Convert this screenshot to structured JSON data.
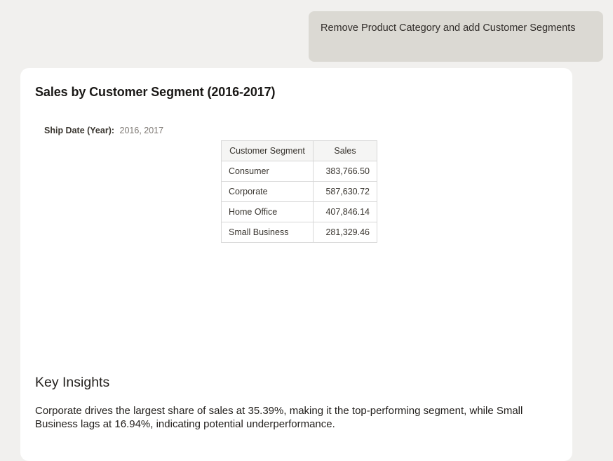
{
  "colors": {
    "page_bg": "#f1f0ee",
    "banner_bg": "#dbd9d3",
    "card_bg": "#ffffff",
    "text_dark": "#312d2a",
    "text_muted": "#7d7873",
    "table_border": "#d8d8d8",
    "table_header_bg": "#f5f5f4"
  },
  "banner": {
    "text": "Remove Product Category and add Customer Segments"
  },
  "card": {
    "title": "Sales by Customer Segment (2016-2017)",
    "filter": {
      "label": "Ship Date (Year):",
      "value": "2016, 2017"
    },
    "insights": {
      "heading": "Key Insights",
      "body": "Corporate drives the largest share of sales at 35.39%, making it the top-performing segment, while Small Business lags at 16.94%, indicating potential underperformance."
    }
  },
  "chart_data": {
    "type": "table",
    "title": "Sales by Customer Segment (2016-2017)",
    "columns": [
      "Customer Segment",
      "Sales"
    ],
    "rows": [
      [
        "Consumer",
        "383,766.50"
      ],
      [
        "Corporate",
        "587,630.72"
      ],
      [
        "Home Office",
        "407,846.14"
      ],
      [
        "Small Business",
        "281,329.46"
      ]
    ]
  }
}
